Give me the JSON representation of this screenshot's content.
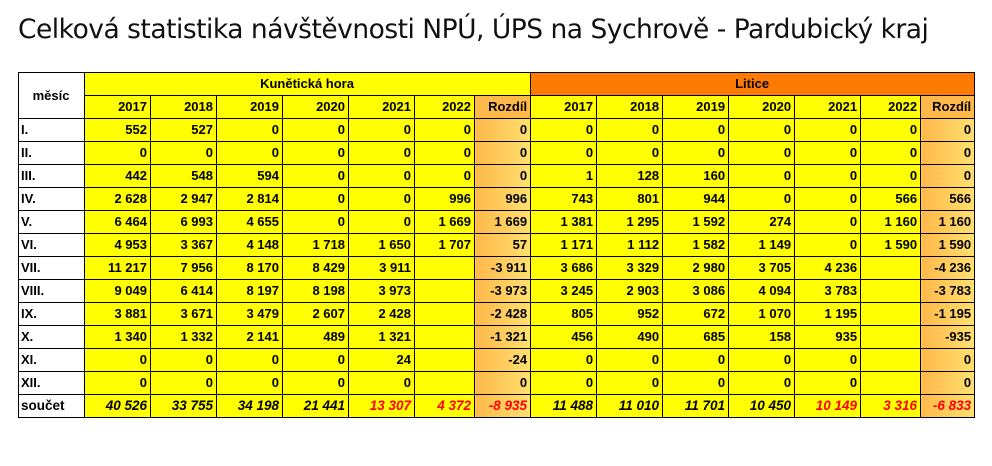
{
  "title": "Celková statistika návštěvnosti NPÚ, ÚPS na Sychrově - Pardubický kraj",
  "month_header": "měsíc",
  "groups": [
    {
      "name": "Kunětická hora"
    },
    {
      "name": "Litice"
    }
  ],
  "year_headers": [
    "2017",
    "2018",
    "2019",
    "2020",
    "2021",
    "2022",
    "Rozdíl",
    "2017",
    "2018",
    "2019",
    "2020",
    "2021",
    "2022",
    "Rozdíl"
  ],
  "rows": [
    {
      "month": "I.",
      "cells": [
        "552",
        "527",
        "0",
        "0",
        "0",
        "0",
        "0",
        "0",
        "0",
        "0",
        "0",
        "0",
        "0",
        "0"
      ]
    },
    {
      "month": "II.",
      "cells": [
        "0",
        "0",
        "0",
        "0",
        "0",
        "0",
        "0",
        "0",
        "0",
        "0",
        "0",
        "0",
        "0",
        "0"
      ]
    },
    {
      "month": "III.",
      "cells": [
        "442",
        "548",
        "594",
        "0",
        "0",
        "0",
        "0",
        "1",
        "128",
        "160",
        "0",
        "0",
        "0",
        "0"
      ]
    },
    {
      "month": "IV.",
      "cells": [
        "2 628",
        "2 947",
        "2 814",
        "0",
        "0",
        "996",
        "996",
        "743",
        "801",
        "944",
        "0",
        "0",
        "566",
        "566"
      ]
    },
    {
      "month": "V.",
      "cells": [
        "6 464",
        "6 993",
        "4 655",
        "0",
        "0",
        "1 669",
        "1 669",
        "1 381",
        "1 295",
        "1 592",
        "274",
        "0",
        "1 160",
        "1 160"
      ]
    },
    {
      "month": "VI.",
      "cells": [
        "4 953",
        "3 367",
        "4 148",
        "1 718",
        "1 650",
        "1 707",
        "57",
        "1 171",
        "1 112",
        "1 582",
        "1 149",
        "0",
        "1 590",
        "1 590"
      ]
    },
    {
      "month": "VII.",
      "cells": [
        "11 217",
        "7 956",
        "8 170",
        "8 429",
        "3 911",
        "",
        "-3 911",
        "3 686",
        "3 329",
        "2 980",
        "3 705",
        "4 236",
        "",
        "-4 236"
      ]
    },
    {
      "month": "VIII.",
      "cells": [
        "9 049",
        "6 414",
        "8 197",
        "8 198",
        "3 973",
        "",
        "-3 973",
        "3 245",
        "2 903",
        "3 086",
        "4 094",
        "3 783",
        "",
        "-3 783"
      ]
    },
    {
      "month": "IX.",
      "cells": [
        "3 881",
        "3 671",
        "3 479",
        "2 607",
        "2 428",
        "",
        "-2 428",
        "805",
        "952",
        "672",
        "1 070",
        "1 195",
        "",
        "-1 195"
      ]
    },
    {
      "month": "X.",
      "cells": [
        "1 340",
        "1 332",
        "2 141",
        "489",
        "1 321",
        "",
        "-1 321",
        "456",
        "490",
        "685",
        "158",
        "935",
        "",
        "-935"
      ]
    },
    {
      "month": "XI.",
      "cells": [
        "0",
        "0",
        "0",
        "0",
        "24",
        "",
        "-24",
        "0",
        "0",
        "0",
        "0",
        "0",
        "",
        "0"
      ]
    },
    {
      "month": "XII.",
      "cells": [
        "0",
        "0",
        "0",
        "0",
        "0",
        "",
        "0",
        "0",
        "0",
        "0",
        "0",
        "0",
        "",
        "0"
      ]
    }
  ],
  "sum_row": {
    "month": "součet",
    "cells": [
      "40 526",
      "33 755",
      "34 198",
      "21 441",
      "13 307",
      "4 372",
      "-8 935",
      "11 488",
      "11 010",
      "11 701",
      "10 450",
      "10 149",
      "3 316",
      "-6 833"
    ],
    "red_indices": [
      4,
      5,
      6,
      11,
      12,
      13
    ]
  },
  "colors": {
    "year_cell": "#ffff00",
    "rozdil_cell": "#ffb84a",
    "litice_header": "#ff7a00",
    "negative_text": "#ff0000"
  }
}
